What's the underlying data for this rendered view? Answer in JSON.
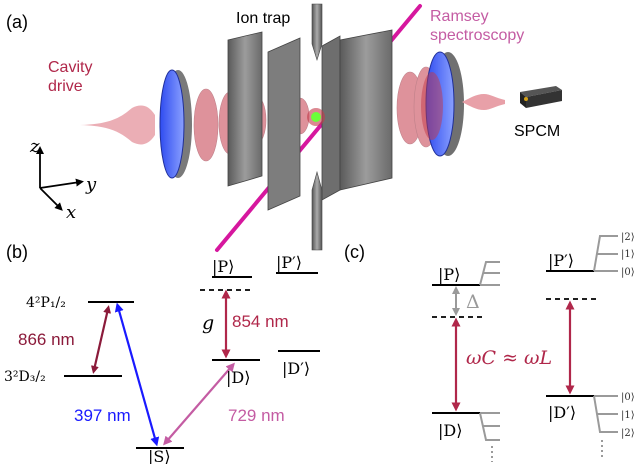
{
  "panels": {
    "a": "(a)",
    "b": "(b)",
    "c": "(c)"
  },
  "panel_a": {
    "ion_trap": "Ion trap",
    "ramsey_line1": "Ramsey",
    "ramsey_line2": "spectroscopy",
    "cavity_line1": "Cavity",
    "cavity_line2": "drive",
    "spcm": "SPCM",
    "axis_z": "z",
    "axis_y": "y",
    "axis_x": "x"
  },
  "panel_b": {
    "state_P": "|P⟩",
    "state_Pp": "|P′⟩",
    "state_D": "|D⟩",
    "state_Dp": "|D′⟩",
    "state_S": "|S⟩",
    "level_P12": "4²P₁/₂",
    "level_D32": "3²D₃/₂",
    "wl_866": "866 nm",
    "wl_397": "397 nm",
    "wl_854": "854 nm",
    "wl_729": "729 nm",
    "coupling_g": "g"
  },
  "panel_c": {
    "state_P": "|P⟩",
    "state_Pp": "|P′⟩",
    "state_D": "|D⟩",
    "state_Dp": "|D′⟩",
    "delta": "Δ",
    "resonance": "ωC ≈ ωL",
    "fock_top": [
      "|2⟩",
      "|1⟩",
      "|0⟩"
    ],
    "fock_bottom": [
      "|0⟩",
      "|1⟩",
      "|2⟩"
    ]
  },
  "colors": {
    "dark_red": "#8b1a3a",
    "crimson": "#b0274a",
    "blue": "#1a1aff",
    "magenta_beam": "#d6179e",
    "orchid": "#c45ca3",
    "laser_pink": "#e8a0a8",
    "mirror_blue": "#4a6bff",
    "gray": "#9a9a9a"
  }
}
